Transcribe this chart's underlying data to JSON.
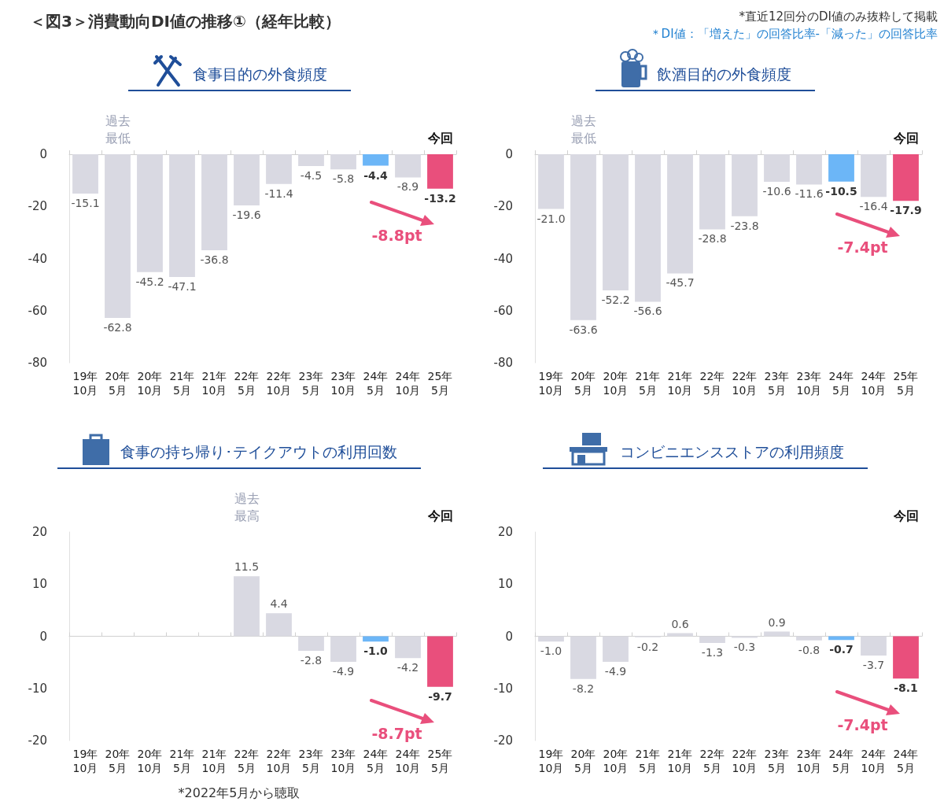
{
  "chart_data": [
    {
      "type": "bar",
      "title": "食事目的の外食頻度",
      "categories": [
        "19年\n10月",
        "20年\n5月",
        "20年\n10月",
        "21年\n5月",
        "21年\n10月",
        "22年\n5月",
        "22年\n10月",
        "23年\n5月",
        "23年\n10月",
        "24年\n5月",
        "24年\n10月",
        "25年\n5月"
      ],
      "values": [
        -15.1,
        -62.8,
        -45.2,
        -47.1,
        -36.8,
        -19.6,
        -11.4,
        -4.5,
        -5.8,
        -4.4,
        -8.9,
        -13.2
      ],
      "value_labels": [
        "-15.1",
        "-62.8",
        "-45.2",
        "-47.1",
        "-36.8",
        "-19.6",
        "-11.4",
        "-4.5",
        "-5.8",
        "-4.4",
        "-8.9",
        "-13.2"
      ],
      "colors": [
        "#d9d9e2",
        "#d9d9e2",
        "#d9d9e2",
        "#d9d9e2",
        "#d9d9e2",
        "#d9d9e2",
        "#d9d9e2",
        "#d9d9e2",
        "#d9d9e2",
        "#6cb6f7",
        "#d9d9e2",
        "#e94f7c"
      ],
      "ylim": [
        -80,
        0
      ],
      "yticks": [
        -80,
        -60,
        -40,
        -20,
        0
      ],
      "annotations": [
        "＜図3＞消費動向DI値の推移①（経年比較）",
        "*直近12回分のDI値のみ抜粋して掲載",
        "＊DI値：「増えた」の回答比率-「減った」の回答比率",
        "過去最低",
        "今回",
        "-8.8pt"
      ]
    },
    {
      "type": "bar",
      "title": "飲酒目的の外食頻度",
      "categories": [
        "19年\n10月",
        "20年\n5月",
        "20年\n10月",
        "21年\n5月",
        "21年\n10月",
        "22年\n5月",
        "22年\n10月",
        "23年\n5月",
        "23年\n10月",
        "24年\n5月",
        "24年\n10月",
        "25年\n5月"
      ],
      "values": [
        -21.0,
        -63.6,
        -52.2,
        -56.6,
        -45.7,
        -28.8,
        -23.8,
        -10.6,
        -11.6,
        -10.5,
        -16.4,
        -17.9
      ],
      "value_labels": [
        "-21.0",
        "-63.6",
        "-52.2",
        "-56.6",
        "-45.7",
        "-28.8",
        "-23.8",
        "-10.6",
        "-11.6",
        "-10.5",
        "-16.4",
        "-17.9"
      ],
      "colors": [
        "#d9d9e2",
        "#d9d9e2",
        "#d9d9e2",
        "#d9d9e2",
        "#d9d9e2",
        "#d9d9e2",
        "#d9d9e2",
        "#d9d9e2",
        "#d9d9e2",
        "#6cb6f7",
        "#d9d9e2",
        "#e94f7c"
      ],
      "ylim": [
        -80,
        0
      ],
      "yticks": [
        -80,
        -60,
        -40,
        -20,
        0
      ],
      "annotations": [
        "過去最低",
        "今回",
        "-7.4pt"
      ]
    },
    {
      "type": "bar",
      "title": "食事の持ち帰り･テイクアウトの利用回数",
      "categories": [
        "19年\n10月",
        "20年\n5月",
        "20年\n10月",
        "21年\n5月",
        "21年\n10月",
        "22年\n5月",
        "22年\n10月",
        "23年\n5月",
        "23年\n10月",
        "24年\n5月",
        "24年\n10月",
        "25年\n5月"
      ],
      "values": [
        null,
        null,
        null,
        null,
        null,
        11.5,
        4.4,
        -2.8,
        -4.9,
        -1.0,
        -4.2,
        -9.7
      ],
      "value_labels": [
        null,
        null,
        null,
        null,
        null,
        "11.5",
        "4.4",
        "-2.8",
        "-4.9",
        "-1.0",
        "-4.2",
        "-9.7"
      ],
      "colors": [
        "#d9d9e2",
        "#d9d9e2",
        "#d9d9e2",
        "#d9d9e2",
        "#d9d9e2",
        "#d9d9e2",
        "#d9d9e2",
        "#d9d9e2",
        "#d9d9e2",
        "#6cb6f7",
        "#d9d9e2",
        "#e94f7c"
      ],
      "ylim": [
        -20,
        20
      ],
      "yticks": [
        -20,
        -10,
        0,
        10,
        20
      ],
      "annotations": [
        "過去最高",
        "今回",
        "-8.7pt",
        "*2022年5月から聴取"
      ]
    },
    {
      "type": "bar",
      "title": "コンビニエンスストアの利用頻度",
      "categories": [
        "19年\n10月",
        "20年\n5月",
        "20年\n10月",
        "21年\n5月",
        "21年\n10月",
        "22年\n5月",
        "22年\n10月",
        "23年\n5月",
        "23年\n10月",
        "24年\n5月",
        "24年\n10月",
        "24年\n5月"
      ],
      "values": [
        -1.0,
        -8.2,
        -4.9,
        -0.2,
        0.6,
        -1.3,
        -0.3,
        0.9,
        -0.8,
        -0.7,
        -3.7,
        -8.1
      ],
      "value_labels": [
        "-1.0",
        "-8.2",
        "-4.9",
        "-0.2",
        "0.6",
        "-1.3",
        "-0.3",
        "0.9",
        "-0.8",
        "-0.7",
        "-3.7",
        "-8.1"
      ],
      "colors": [
        "#d9d9e2",
        "#d9d9e2",
        "#d9d9e2",
        "#d9d9e2",
        "#d9d9e2",
        "#d9d9e2",
        "#d9d9e2",
        "#d9d9e2",
        "#d9d9e2",
        "#6cb6f7",
        "#d9d9e2",
        "#e94f7c"
      ],
      "ylim": [
        -20,
        20
      ],
      "yticks": [
        -20,
        -10,
        0,
        10,
        20
      ],
      "annotations": [
        "今回",
        "-7.4pt"
      ]
    }
  ]
}
